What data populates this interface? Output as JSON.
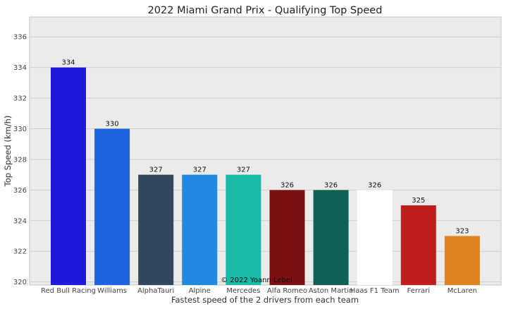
{
  "chart_data": {
    "type": "bar",
    "title": "2022 Miami Grand Prix - Qualifying Top Speed",
    "xlabel": "Fastest speed of the 2 drivers from each team",
    "ylabel": "Top Speed (km/h)",
    "categories": [
      "Red Bull Racing",
      "Williams",
      "AlphaTauri",
      "Alpine",
      "Mercedes",
      "Alfa Romeo",
      "Aston Martin",
      "Haas F1 Team",
      "Ferrari",
      "McLaren"
    ],
    "values": [
      334,
      330,
      327,
      327,
      327,
      326,
      326,
      326,
      325,
      323
    ],
    "colors": [
      "#2019da",
      "#1e63e0",
      "#32465e",
      "#2089e0",
      "#1ab8a6",
      "#7d1112",
      "#0e6154",
      "#ffffff",
      "#c01d1d",
      "#e08420"
    ],
    "data_labels": [
      "334",
      "330",
      "327",
      "327",
      "327",
      "326",
      "326",
      "326",
      "325",
      "323"
    ],
    "yticks": [
      320,
      322,
      324,
      326,
      328,
      330,
      332,
      334,
      336
    ],
    "ylim": [
      319.8,
      337.3
    ],
    "grid": true,
    "background": "#ebebeb"
  },
  "watermark": "© 2022 Yoann Lebel"
}
